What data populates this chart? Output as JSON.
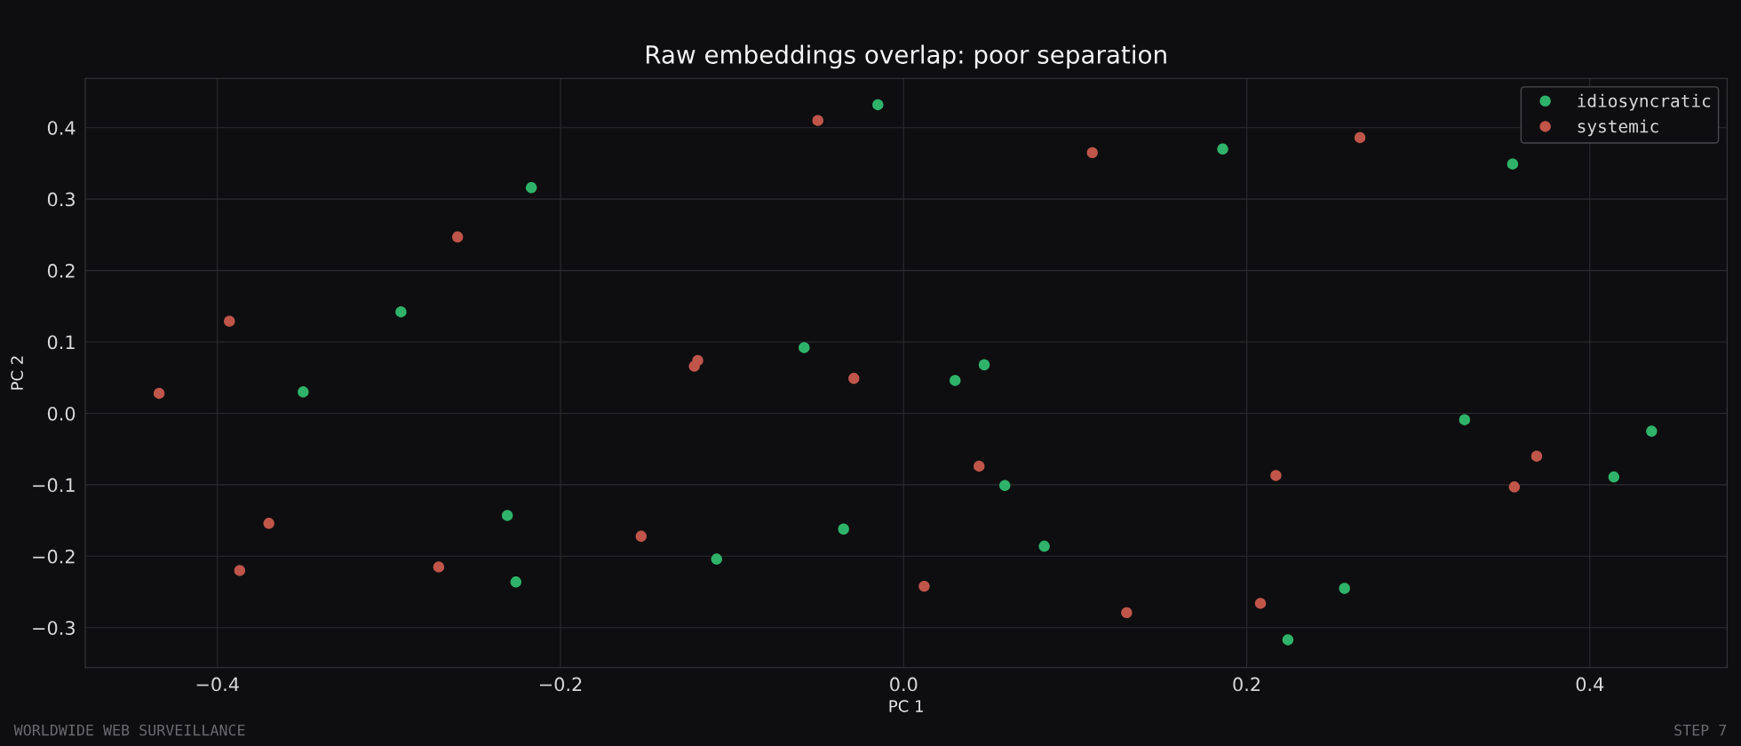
{
  "chart_data": {
    "type": "scatter",
    "title": "Raw embeddings overlap: poor separation",
    "xlabel": "PC 1",
    "ylabel": "PC 2",
    "xlim": [
      -0.477,
      0.48
    ],
    "ylim": [
      -0.356,
      0.469
    ],
    "xticks": [
      {
        "value": -0.4,
        "label": "−0.4"
      },
      {
        "value": -0.2,
        "label": "−0.2"
      },
      {
        "value": 0.0,
        "label": "0.0"
      },
      {
        "value": 0.2,
        "label": "0.2"
      },
      {
        "value": 0.4,
        "label": "0.4"
      }
    ],
    "yticks": [
      {
        "value": -0.3,
        "label": "−0.3"
      },
      {
        "value": -0.2,
        "label": "−0.2"
      },
      {
        "value": -0.1,
        "label": "−0.1"
      },
      {
        "value": 0.0,
        "label": "0.0"
      },
      {
        "value": 0.1,
        "label": "0.1"
      },
      {
        "value": 0.2,
        "label": "0.2"
      },
      {
        "value": 0.3,
        "label": "0.3"
      },
      {
        "value": 0.4,
        "label": "0.4"
      }
    ],
    "grid": true,
    "legend": "top right",
    "marker": "circle",
    "annotations": [
      "WORLDWIDE WEB SURVEILLANCE",
      "STEP 7"
    ],
    "series": [
      {
        "name": "idiosyncratic",
        "color": "#2fb36a",
        "x": [
          -0.015,
          -0.217,
          -0.293,
          -0.35,
          -0.058,
          0.03,
          0.047,
          0.186,
          0.355,
          0.327,
          0.436,
          0.414,
          0.059,
          0.082,
          -0.035,
          -0.109,
          -0.231,
          -0.226,
          0.257,
          0.224
        ],
        "values": [
          0.432,
          0.316,
          0.142,
          0.03,
          0.092,
          0.046,
          0.068,
          0.37,
          0.349,
          -0.009,
          -0.025,
          -0.089,
          -0.101,
          -0.186,
          -0.162,
          -0.204,
          -0.143,
          -0.236,
          -0.245,
          -0.317
        ]
      },
      {
        "name": "systemic",
        "color": "#c0554a",
        "x": [
          -0.05,
          0.11,
          0.266,
          -0.26,
          -0.393,
          -0.434,
          -0.122,
          -0.12,
          -0.029,
          0.044,
          0.217,
          0.369,
          0.356,
          -0.37,
          -0.387,
          -0.271,
          -0.153,
          0.012,
          0.13,
          0.208
        ],
        "values": [
          0.41,
          0.365,
          0.386,
          0.247,
          0.129,
          0.028,
          0.066,
          0.074,
          0.049,
          -0.074,
          -0.087,
          -0.06,
          -0.103,
          -0.154,
          -0.22,
          -0.215,
          -0.172,
          -0.242,
          -0.279,
          -0.266
        ]
      }
    ]
  }
}
